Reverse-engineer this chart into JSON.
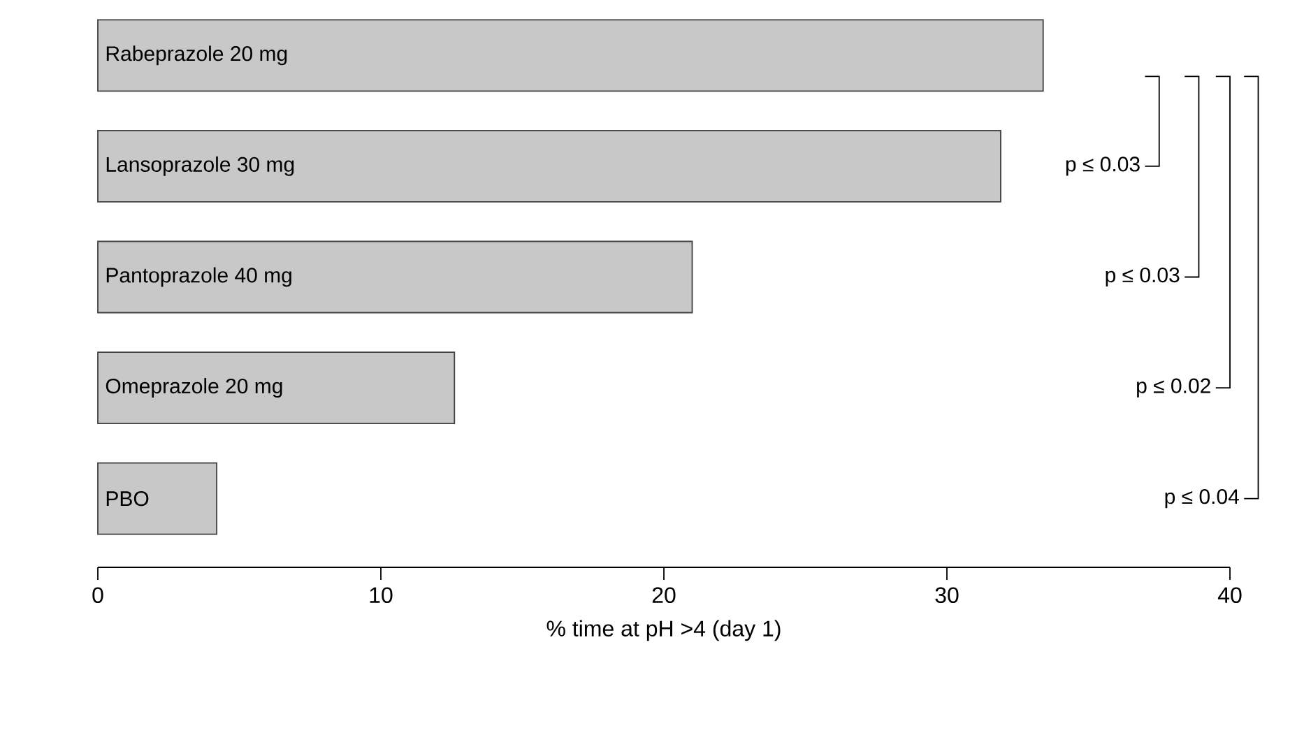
{
  "chart_data": {
    "type": "bar",
    "orientation": "horizontal",
    "categories": [
      "Rabeprazole 20 mg",
      "Lansoprazole 30 mg",
      "Pantoprazole 40 mg",
      "Omeprazole 20 mg",
      "PBO"
    ],
    "values": [
      33.4,
      31.9,
      21.0,
      12.6,
      4.2
    ],
    "color": "#c8c8c8",
    "xlabel": "% time at pH >4 (day 1)",
    "xlim": [
      0,
      40
    ],
    "xticks": [
      0,
      10,
      20,
      30,
      40
    ],
    "annotations": [
      "p ≤ 0.03",
      "p ≤ 0.03",
      "p ≤ 0.02",
      "p ≤ 0.04"
    ]
  }
}
